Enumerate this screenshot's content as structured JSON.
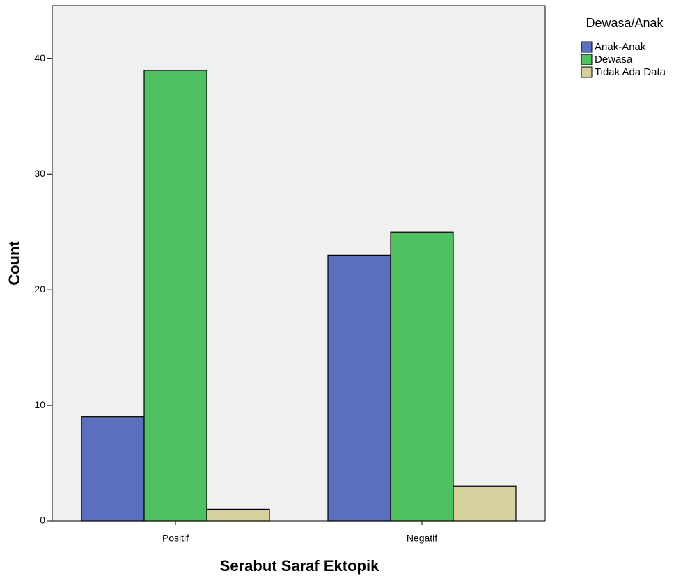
{
  "chart_data": {
    "type": "bar",
    "x_label": "Serabut Saraf Ektopik",
    "y_label": "Count",
    "legend_title": "Dewasa/Anak",
    "categories": [
      "Positif",
      "Negatif"
    ],
    "series": [
      {
        "name": "Anak-Anak",
        "color": "#5b6fbf",
        "values": [
          9,
          23
        ]
      },
      {
        "name": "Dewasa",
        "color": "#4fc160",
        "values": [
          39,
          25
        ]
      },
      {
        "name": "Tidak Ada Data",
        "color": "#d6d09c",
        "values": [
          1,
          3
        ]
      }
    ],
    "ylim": [
      0,
      44.6
    ],
    "yticks": [
      0,
      10,
      20,
      30,
      40
    ],
    "grid": false,
    "legend": "right"
  }
}
